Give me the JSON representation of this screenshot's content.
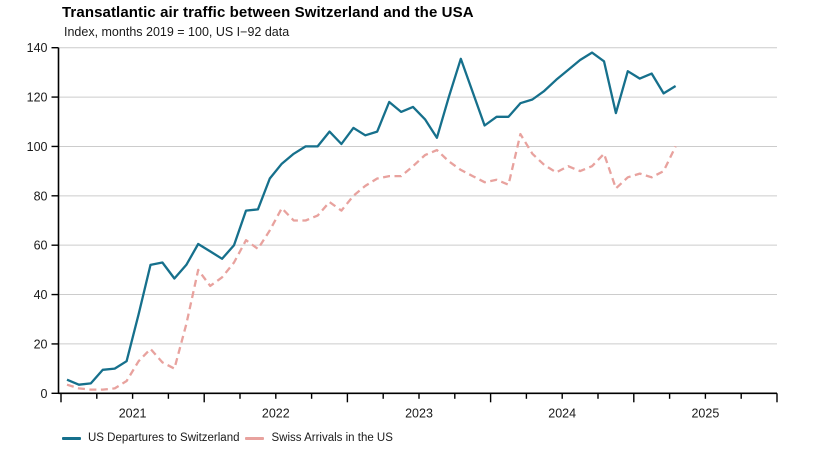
{
  "title": "Transatlantic air traffic between Switzerland and the USA",
  "subtitle": "Index, months 2019 = 100, US I−92 data",
  "legend": {
    "items": [
      {
        "label": "US Departures to Switzerland"
      },
      {
        "label": "Swiss Arrivals in the US"
      }
    ]
  },
  "colors": {
    "teal_series": "#16708c",
    "pink_series": "#e8a29e",
    "gridline": "#cccccc",
    "axis": "#000000",
    "text": "#1a1a1a"
  },
  "chart_data": {
    "type": "line",
    "title": "Transatlantic air traffic between Switzerland and the USA",
    "subtitle": "Index, months 2019 = 100, US I−92 data",
    "frequency": "monthly",
    "x_start": "2021-01",
    "x_end": "2025-04",
    "n_points": 52,
    "x_axis_span": [
      "2021-01",
      "2026-01"
    ],
    "x_tick_interval": "quarterly",
    "x_year_labels": [
      "2021",
      "2022",
      "2023",
      "2024",
      "2025"
    ],
    "ylim": [
      0,
      140
    ],
    "y_ticks": [
      0,
      20,
      40,
      60,
      80,
      100,
      120,
      140
    ],
    "grid": "horizontal",
    "legend_position": "bottom-left",
    "series": [
      {
        "name": "US Departures to Switzerland",
        "color": "#16708c",
        "style": "solid",
        "values": [
          5.5,
          3.5,
          4,
          9.5,
          10,
          13,
          32,
          52,
          53,
          46.5,
          52,
          60.5,
          57.5,
          54.5,
          60,
          74,
          74.5,
          87,
          93,
          97,
          100,
          100,
          106,
          101,
          107.5,
          104.5,
          106,
          118,
          114,
          116,
          111,
          103.5,
          120,
          135.5,
          122,
          108.5,
          112,
          112,
          117.5,
          119,
          122.5,
          127,
          131,
          135,
          138,
          134.5,
          113.5,
          130.5,
          127.5,
          129.5,
          121.5,
          124.5
        ]
      },
      {
        "name": "Swiss Arrivals in the US",
        "color": "#e8a29e",
        "style": "dashed",
        "values": [
          3.5,
          2,
          1.5,
          1.5,
          2,
          5,
          13,
          18,
          12.5,
          10,
          28,
          50,
          43.5,
          47,
          53,
          62,
          58.5,
          66,
          75,
          70,
          70,
          72,
          77.5,
          74,
          80,
          84,
          87,
          88,
          88,
          92,
          96.5,
          98.5,
          94,
          90.5,
          88,
          85.5,
          86.5,
          84.5,
          105,
          97,
          92.5,
          89.5,
          92,
          90,
          92,
          97,
          83,
          87.5,
          89,
          87.5,
          90,
          100
        ]
      }
    ]
  }
}
